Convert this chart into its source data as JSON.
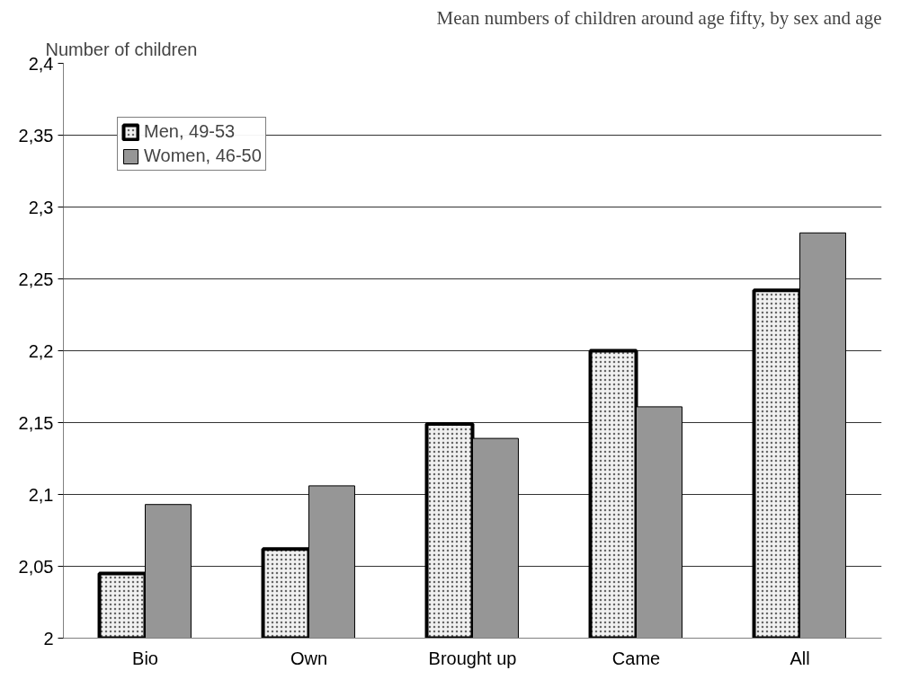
{
  "chart_data": {
    "type": "bar",
    "title": "Mean numbers of children around age fifty, by sex and age",
    "ylabel": "Number of children",
    "categories": [
      "Bio",
      "Own",
      "Brought up",
      "Came",
      "All"
    ],
    "series": [
      {
        "name": "Men, 49-53",
        "color": "#f0f0f0",
        "values": [
          2.045,
          2.062,
          2.149,
          2.2,
          2.242
        ]
      },
      {
        "name": "Women, 46-50",
        "color": "#969696",
        "values": [
          2.093,
          2.106,
          2.139,
          2.161,
          2.282
        ]
      }
    ],
    "ylim": [
      2,
      2.4
    ],
    "yticks": [
      {
        "value": 2,
        "label": "2"
      },
      {
        "value": 2.05,
        "label": "2,05"
      },
      {
        "value": 2.1,
        "label": "2,1"
      },
      {
        "value": 2.15,
        "label": "2,15"
      },
      {
        "value": 2.2,
        "label": "2,2"
      },
      {
        "value": 2.25,
        "label": "2,25"
      },
      {
        "value": 2.3,
        "label": "2,3"
      },
      {
        "value": 2.35,
        "label": "2,35"
      },
      {
        "value": 2.4,
        "label": "2,4"
      }
    ],
    "grid": "y",
    "legend": "top left"
  }
}
